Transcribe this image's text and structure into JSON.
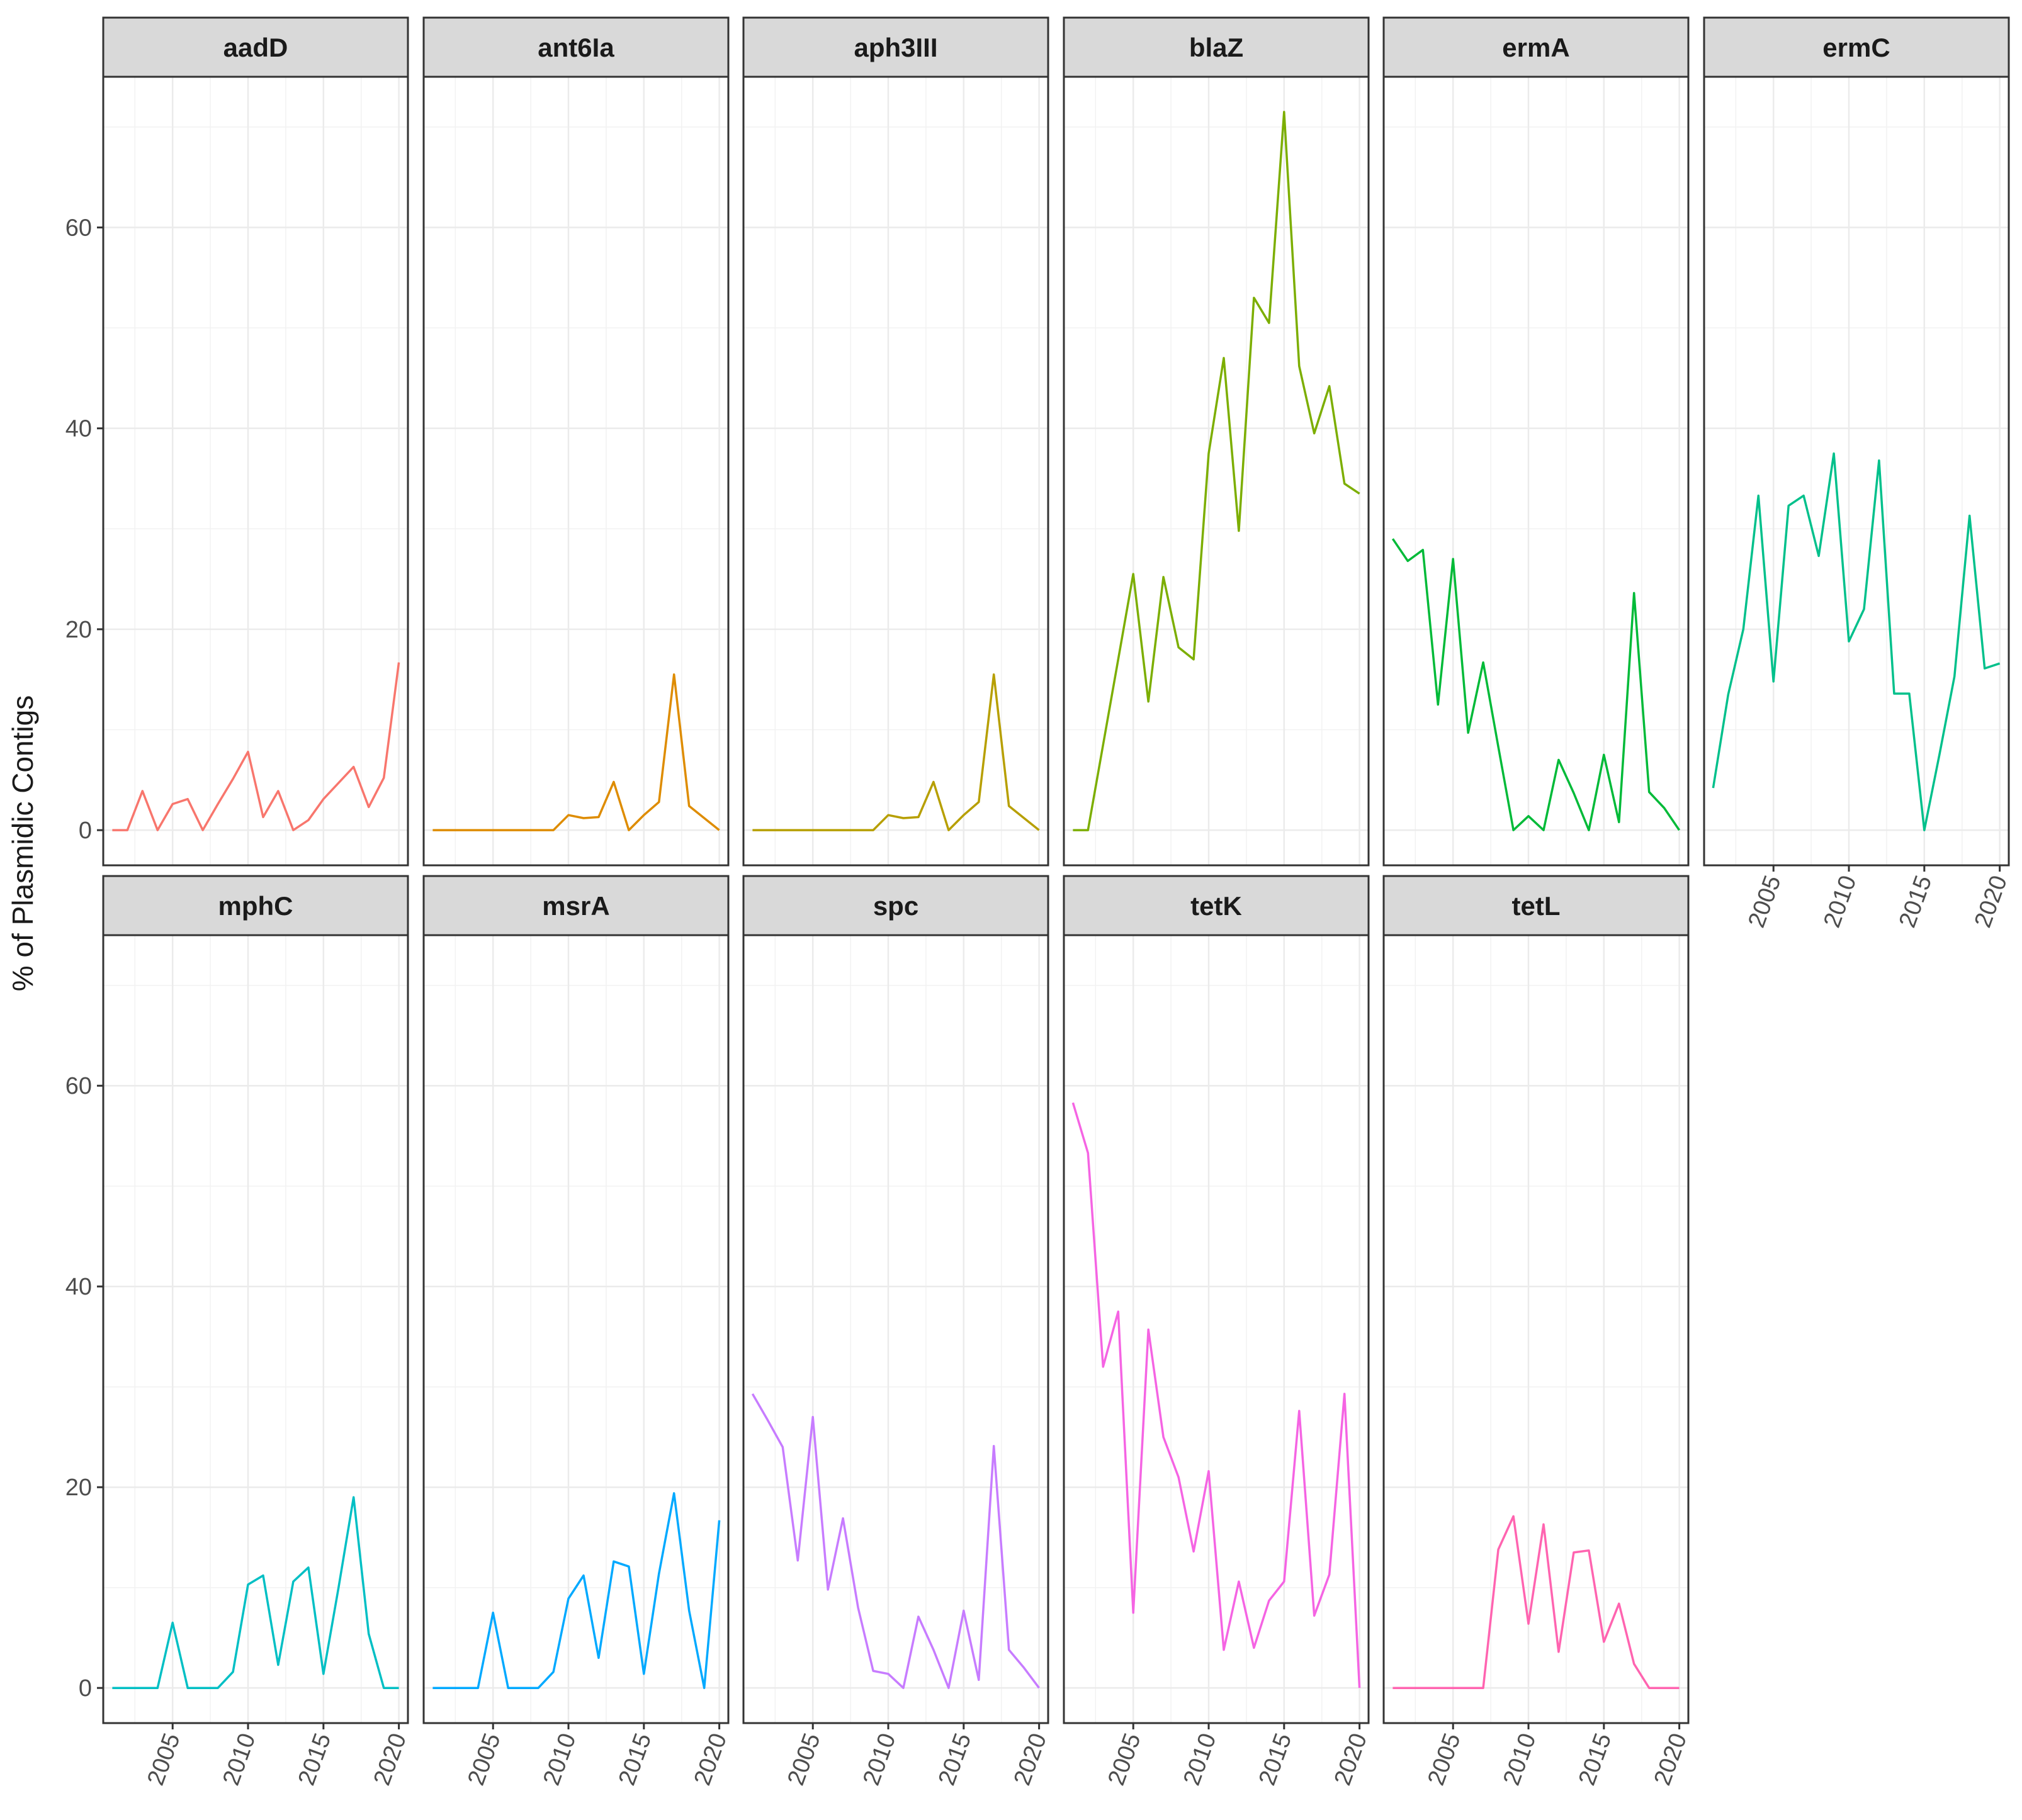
{
  "chart_data": {
    "type": "line",
    "facet": "gene",
    "xlabel": "",
    "ylabel": "% of Plasmidic Contigs",
    "xlim": [
      2000.4,
      2020.6
    ],
    "ylim": [
      -3.5,
      75
    ],
    "x_ticks": [
      2005,
      2010,
      2015,
      2020
    ],
    "y_ticks": [
      0,
      20,
      40,
      60
    ],
    "grid": true,
    "legend": "none",
    "x": [
      2001,
      2002,
      2003,
      2004,
      2005,
      2006,
      2007,
      2008,
      2009,
      2010,
      2011,
      2012,
      2013,
      2014,
      2015,
      2016,
      2017,
      2018,
      2019,
      2020
    ],
    "series": [
      {
        "name": "aadD",
        "color": "#F8766D",
        "values": [
          0,
          0,
          3.9,
          0,
          2.6,
          3.1,
          0,
          2.6,
          5.1,
          7.8,
          1.3,
          3.9,
          0,
          1,
          3.1,
          4.7,
          6.3,
          2.3,
          5.2,
          16.7
        ]
      },
      {
        "name": "ant6Ia",
        "color": "#DE8C00",
        "values": [
          0,
          0,
          0,
          0,
          0,
          0,
          0,
          0,
          0,
          1.5,
          1.2,
          1.3,
          4.8,
          0,
          1.5,
          2.8,
          15.5,
          2.4,
          1.2,
          0
        ]
      },
      {
        "name": "aph3III",
        "color": "#B79F00",
        "values": [
          0,
          0,
          0,
          0,
          0,
          0,
          0,
          0,
          0,
          1.5,
          1.2,
          1.3,
          4.8,
          0,
          1.5,
          2.8,
          15.5,
          2.4,
          1.2,
          0
        ]
      },
      {
        "name": "blaZ",
        "color": "#7CAE00",
        "values": [
          0,
          0,
          8.5,
          17,
          25.5,
          12.8,
          25.2,
          18.2,
          17,
          37.5,
          47,
          29.8,
          53,
          50.5,
          71.5,
          46.2,
          39.5,
          44.2,
          34.5,
          33.5
        ]
      },
      {
        "name": "ermA",
        "color": "#00BA38",
        "values": [
          29,
          26.8,
          27.9,
          12.5,
          27,
          9.7,
          16.7,
          8.3,
          0,
          1.4,
          0,
          7,
          3.7,
          0,
          7.5,
          0.8,
          23.6,
          3.8,
          2.2,
          0
        ]
      },
      {
        "name": "ermC",
        "color": "#00C08B",
        "values": [
          4.2,
          13.5,
          20,
          33.3,
          14.8,
          32.3,
          33.3,
          27.3,
          37.5,
          18.8,
          22,
          36.8,
          13.6,
          13.6,
          0,
          7.5,
          15.3,
          31.3,
          16.1,
          16.6
        ]
      },
      {
        "name": "mphC",
        "color": "#00BFC4",
        "values": [
          0,
          0,
          0,
          0,
          6.5,
          0,
          0,
          0,
          1.6,
          10.3,
          11.2,
          2.3,
          10.6,
          12,
          1.4,
          10,
          19,
          5.4,
          0,
          0
        ]
      },
      {
        "name": "msrA",
        "color": "#00A9FF",
        "values": [
          0,
          0,
          0,
          0,
          7.5,
          0,
          0,
          0,
          1.6,
          8.9,
          11.2,
          3,
          12.6,
          12.1,
          1.4,
          11.4,
          19.4,
          7.7,
          0,
          16.7
        ]
      },
      {
        "name": "spc",
        "color": "#C77CFF",
        "values": [
          29.3,
          26.7,
          24,
          12.7,
          27,
          9.8,
          16.9,
          8,
          1.7,
          1.4,
          0,
          7.1,
          3.8,
          0,
          7.7,
          0.8,
          24.1,
          3.8,
          2,
          0
        ]
      },
      {
        "name": "tetK",
        "color": "#F564E3",
        "values": [
          58.3,
          53.3,
          32,
          37.5,
          7.5,
          35.7,
          25,
          21,
          13.6,
          21.6,
          3.8,
          10.6,
          4,
          8.7,
          10.6,
          27.6,
          7.2,
          11.3,
          29.3,
          0
        ]
      },
      {
        "name": "tetL",
        "color": "#FF64B0",
        "values": [
          0,
          0,
          0,
          0,
          0,
          0,
          0,
          13.8,
          17.1,
          6.4,
          16.3,
          3.6,
          13.5,
          13.7,
          4.6,
          8.4,
          2.4,
          0,
          0,
          0
        ]
      }
    ]
  }
}
